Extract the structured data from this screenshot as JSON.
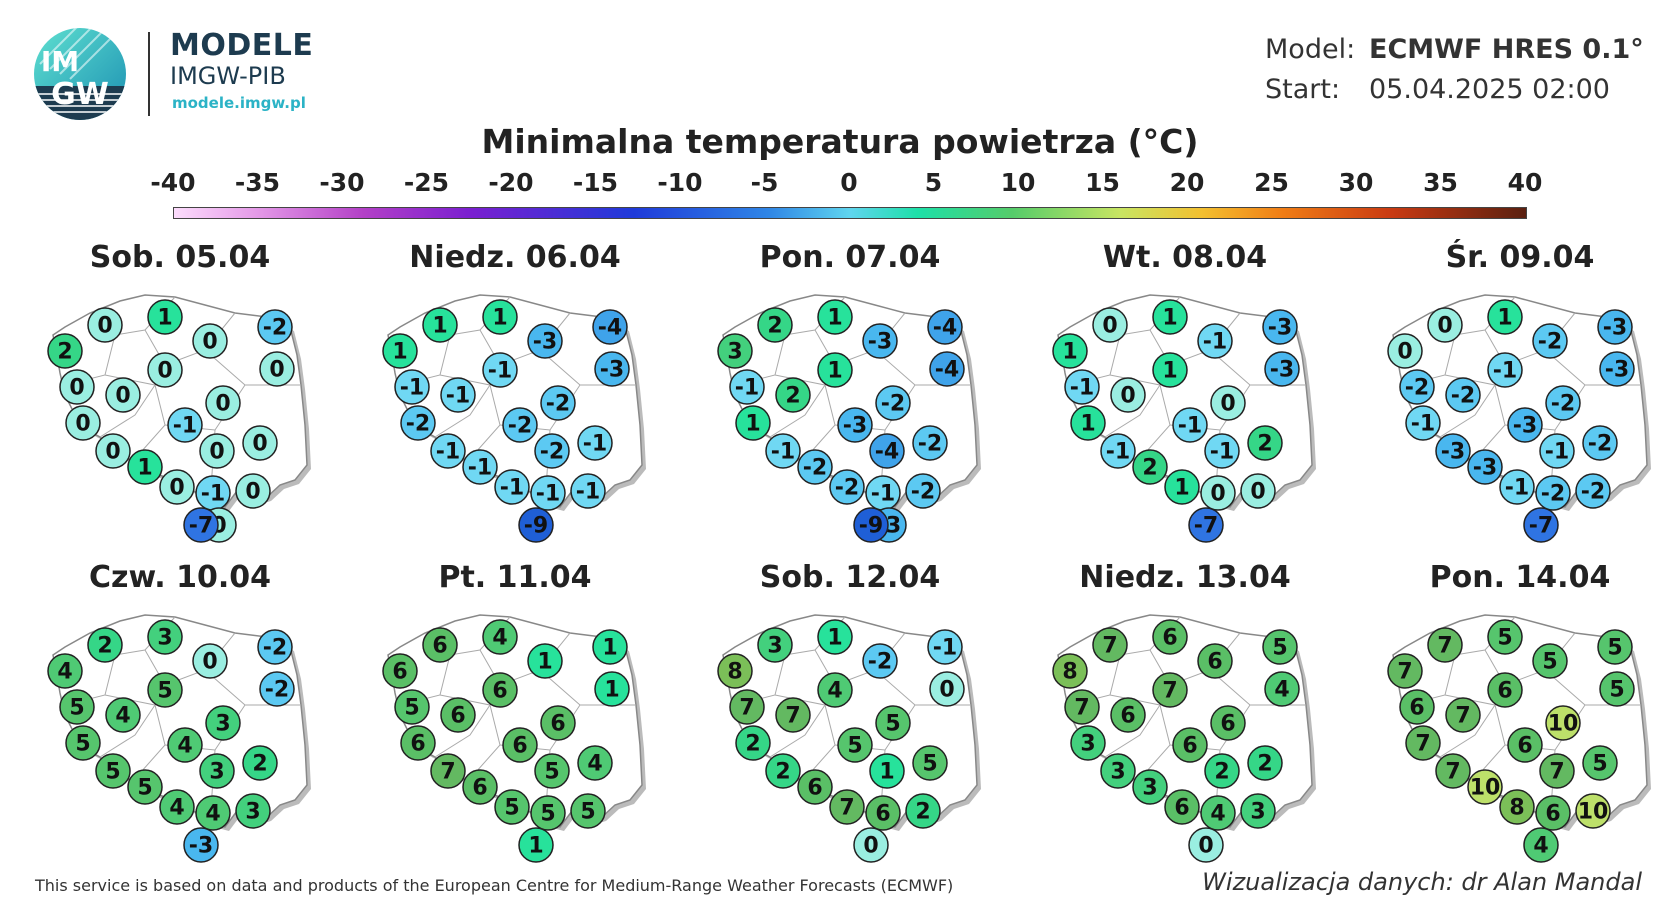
{
  "logo": {
    "badge_top": "IM",
    "badge_bottom": "GW",
    "title": "MODELE",
    "subtitle": "IMGW-PIB",
    "url": "modele.imgw.pl"
  },
  "model_info": {
    "model_label": "Model:",
    "model_value": "ECMWF HRES 0.1°",
    "start_label": "Start:",
    "start_value": "05.04.2025 02:00"
  },
  "title": "Minimalna temperatura powietrza (°C)",
  "scale": {
    "ticks": [
      "-40",
      "-35",
      "-30",
      "-25",
      "-20",
      "-15",
      "-10",
      "-5",
      "0",
      "5",
      "10",
      "15",
      "20",
      "25",
      "30",
      "35",
      "40"
    ]
  },
  "colors": {
    "v_neg9": "#1f5fd6",
    "v_neg7": "#2f74e2",
    "v_neg4": "#3fa3ea",
    "v_neg3": "#49b7ef",
    "v_neg2": "#5cc9f2",
    "v_neg1": "#70d8f3",
    "v_0": "#9aeee1",
    "v_1": "#27e29b",
    "v_2": "#35d687",
    "v_3": "#43d07d",
    "v_4": "#4fca74",
    "v_5": "#56c56d",
    "v_6": "#5abf66",
    "v_7": "#63b961",
    "v_8": "#7bbf58",
    "v_10": "#bde06a"
  },
  "maps": [
    {
      "title": "Sob. 05.04",
      "values": [
        "0",
        "1",
        "2",
        "0",
        "-2",
        "0",
        "0",
        "0",
        "0",
        "0",
        "0",
        "-1",
        "0",
        "0",
        "0",
        "1",
        "0",
        "-1",
        "0",
        "0",
        "-7"
      ]
    },
    {
      "title": "Niedz. 06.04",
      "values": [
        "1",
        "1",
        "1",
        "-3",
        "-4",
        "-3",
        "-1",
        "-1",
        "-1",
        "-2",
        "-2",
        "-2",
        "-1",
        "-2",
        "-1",
        "-1",
        "-1",
        "-1",
        "-1",
        "-9"
      ]
    },
    {
      "title": "Pon. 07.04",
      "values": [
        "2",
        "1",
        "3",
        "-3",
        "-4",
        "-4",
        "-1",
        "2",
        "1",
        "-2",
        "1",
        "-3",
        "-1",
        "-4",
        "-2",
        "-2",
        "-2",
        "-1",
        "-2",
        "-3",
        "-9"
      ]
    },
    {
      "title": "Wt. 08.04",
      "values": [
        "0",
        "1",
        "1",
        "-1",
        "-3",
        "-3",
        "-1",
        "0",
        "1",
        "0",
        "1",
        "-1",
        "-1",
        "-1",
        "2",
        "2",
        "1",
        "0",
        "0",
        "-7"
      ]
    },
    {
      "title": "Śr. 09.04",
      "values": [
        "0",
        "1",
        "0",
        "-2",
        "-3",
        "-3",
        "-2",
        "-2",
        "-1",
        "-2",
        "-1",
        "-3",
        "-3",
        "-1",
        "-2",
        "-3",
        "-1",
        "-2",
        "-2",
        "-7"
      ]
    },
    {
      "title": "Czw. 10.04",
      "values": [
        "2",
        "3",
        "4",
        "0",
        "-2",
        "-2",
        "5",
        "4",
        "5",
        "3",
        "5",
        "4",
        "5",
        "3",
        "2",
        "5",
        "4",
        "4",
        "3",
        "-3"
      ]
    },
    {
      "title": "Pt. 11.04",
      "values": [
        "6",
        "4",
        "6",
        "1",
        "1",
        "1",
        "5",
        "6",
        "6",
        "6",
        "6",
        "6",
        "7",
        "5",
        "4",
        "6",
        "5",
        "5",
        "5",
        "1"
      ]
    },
    {
      "title": "Sob. 12.04",
      "values": [
        "3",
        "1",
        "8",
        "-2",
        "-1",
        "0",
        "7",
        "7",
        "4",
        "5",
        "2",
        "5",
        "2",
        "1",
        "5",
        "6",
        "7",
        "6",
        "2",
        "0"
      ]
    },
    {
      "title": "Niedz. 13.04",
      "values": [
        "7",
        "6",
        "8",
        "6",
        "5",
        "4",
        "7",
        "6",
        "7",
        "6",
        "3",
        "6",
        "3",
        "2",
        "2",
        "3",
        "6",
        "4",
        "3",
        "0"
      ]
    },
    {
      "title": "Pon. 14.04",
      "values": [
        "7",
        "5",
        "7",
        "5",
        "5",
        "5",
        "6",
        "7",
        "6",
        "10",
        "7",
        "6",
        "7",
        "7",
        "5",
        "10",
        "8",
        "6",
        "10",
        "4"
      ]
    }
  ],
  "footer": {
    "left": "This service is based on data and products of the European Centre for Medium-Range Weather Forecasts (ECMWF)",
    "right": "Wizualizacja danych: dr Alan Mandal"
  }
}
